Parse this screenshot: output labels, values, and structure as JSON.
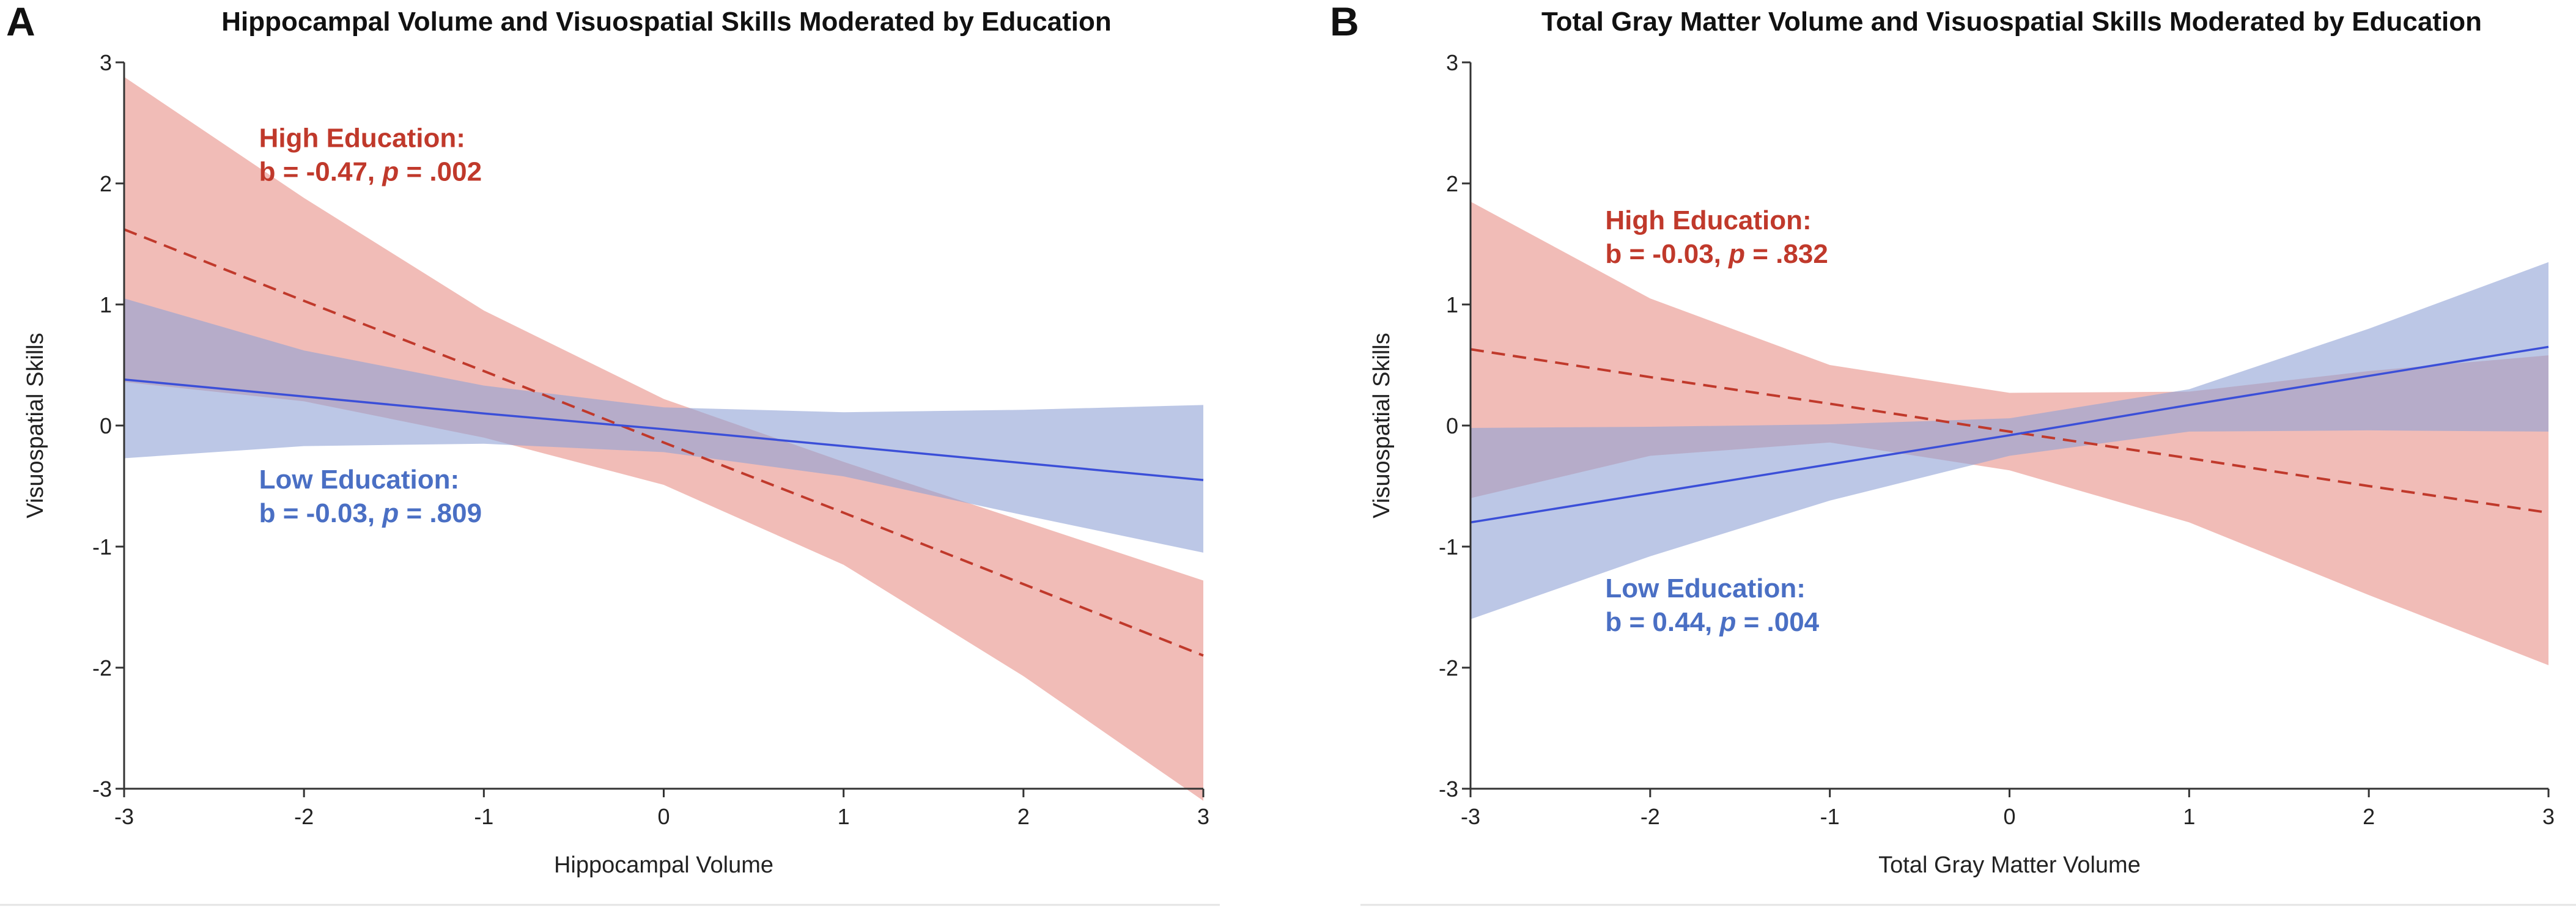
{
  "colors": {
    "high": "#c0392b",
    "high_band": "#e9938b",
    "low": "#3b4fd8",
    "low_band": "#8fa2d6",
    "low_text": "#4a6fc4"
  },
  "chart_data": [
    {
      "type": "line",
      "panel_letter": "A",
      "title": "Hippocampal Volume and Visuospatial Skills Moderated by Education",
      "xlabel": "Hippocampal Volume",
      "ylabel": "Visuospatial Skills",
      "xlim": [
        -3,
        3
      ],
      "ylim": [
        -3,
        3
      ],
      "xticks": [
        -3,
        -2,
        -1,
        0,
        1,
        2,
        3
      ],
      "yticks": [
        -3,
        -2,
        -1,
        0,
        1,
        2,
        3
      ],
      "x": [
        -3,
        -2,
        -1,
        0,
        1,
        2,
        3
      ],
      "series": [
        {
          "key": "high",
          "name": "High Education",
          "style": "dashed",
          "values": [
            1.62,
            1.03,
            0.45,
            -0.14,
            -0.72,
            -1.31,
            -1.9
          ],
          "ci_upper": [
            2.88,
            1.88,
            0.95,
            0.22,
            -0.3,
            -0.79,
            -1.28
          ],
          "ci_lower": [
            0.36,
            0.2,
            -0.1,
            -0.49,
            -1.15,
            -2.07,
            -3.1
          ],
          "annotation": {
            "label": "High Education:",
            "b": "b = -0.47, ",
            "p_symbol": "p",
            "p": " = .002",
            "ax": -2.25,
            "ay": 2.3
          }
        },
        {
          "key": "low",
          "name": "Low Education",
          "style": "solid",
          "values": [
            0.38,
            0.24,
            0.1,
            -0.03,
            -0.17,
            -0.31,
            -0.45
          ],
          "ci_upper": [
            1.05,
            0.62,
            0.33,
            0.15,
            0.11,
            0.13,
            0.17
          ],
          "ci_lower": [
            -0.27,
            -0.17,
            -0.15,
            -0.22,
            -0.42,
            -0.74,
            -1.05
          ],
          "annotation": {
            "label": "Low Education:",
            "b": "b = -0.03, ",
            "p_symbol": "p",
            "p": " = .809",
            "ax": -2.25,
            "ay": -0.52
          }
        }
      ]
    },
    {
      "type": "line",
      "panel_letter": "B",
      "title": "Total Gray Matter Volume and Visuospatial Skills Moderated by Education",
      "xlabel": "Total Gray Matter Volume",
      "ylabel": "Visuospatial Skills",
      "xlim": [
        -3,
        3
      ],
      "ylim": [
        -3,
        3
      ],
      "xticks": [
        -3,
        -2,
        -1,
        0,
        1,
        2,
        3
      ],
      "yticks": [
        -3,
        -2,
        -1,
        0,
        1,
        2,
        3
      ],
      "x": [
        -3,
        -2,
        -1,
        0,
        1,
        2,
        3
      ],
      "series": [
        {
          "key": "high",
          "name": "High Education",
          "style": "dashed",
          "values": [
            0.63,
            0.4,
            0.18,
            -0.05,
            -0.27,
            -0.5,
            -0.72
          ],
          "ci_upper": [
            1.85,
            1.05,
            0.5,
            0.27,
            0.28,
            0.45,
            0.58
          ],
          "ci_lower": [
            -0.6,
            -0.25,
            -0.14,
            -0.37,
            -0.8,
            -1.4,
            -1.98
          ],
          "annotation": {
            "label": "High Education:",
            "b": "b = -0.03, ",
            "p_symbol": "p",
            "p": " = .832",
            "ax": -2.25,
            "ay": 1.62
          }
        },
        {
          "key": "low",
          "name": "Low Education",
          "style": "solid",
          "values": [
            -0.8,
            -0.56,
            -0.32,
            -0.08,
            0.17,
            0.41,
            0.65
          ],
          "ci_upper": [
            -0.02,
            -0.01,
            0.01,
            0.06,
            0.3,
            0.8,
            1.35
          ],
          "ci_lower": [
            -1.6,
            -1.08,
            -0.62,
            -0.25,
            -0.05,
            -0.04,
            -0.05
          ],
          "annotation": {
            "label": "Low Education:",
            "b": "b = 0.44, ",
            "p_symbol": "p",
            "p": " = .004",
            "ax": -2.25,
            "ay": -1.42
          }
        }
      ]
    }
  ]
}
